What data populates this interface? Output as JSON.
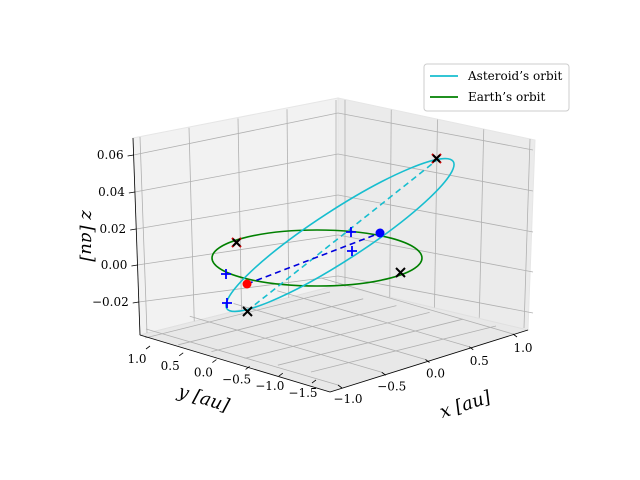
{
  "chart_data": {
    "type": "line3d",
    "title": "",
    "xlabel": "x [au]",
    "ylabel": "y [au]",
    "zlabel": "z [au]",
    "x_ticks": [
      "−1.0",
      "−0.5",
      "0.0",
      "0.5",
      "1.0"
    ],
    "y_ticks": [
      "1.0",
      "0.5",
      "0.0",
      "−0.5",
      "−1.0",
      "−1.5"
    ],
    "z_ticks": [
      "0.06",
      "0.04",
      "0.02",
      "0.00",
      "−0.02"
    ],
    "xlim": [
      -1.2,
      1.2
    ],
    "ylim": [
      -1.6,
      1.1
    ],
    "zlim": [
      -0.03,
      0.07
    ],
    "series": [
      {
        "name": "Asteroid’s orbit",
        "color": "#17becf",
        "semi_major_axis": 1.6,
        "eccentricity": 0.38,
        "inclination_max_z": 0.065
      },
      {
        "name": "Earth’s orbit",
        "color": "#008000",
        "radius": 1.0,
        "z": 0.0
      }
    ],
    "markers": {
      "asteroid_current": {
        "color": "#0000ff",
        "shape": "circle",
        "x": 0.7,
        "y": 0.3,
        "z": 0.02
      },
      "earth_current": {
        "color": "#ff0000",
        "shape": "circle",
        "x": -0.95,
        "y": -0.3,
        "z": 0.0
      },
      "nodes_plus_color": "#0000ff",
      "extremes_x_color": "#000000",
      "extremes_x_red_color": "#cc0000"
    },
    "legend": {
      "position": "top-right",
      "entries": [
        "Asteroid’s orbit",
        "Earth’s orbit"
      ]
    }
  }
}
